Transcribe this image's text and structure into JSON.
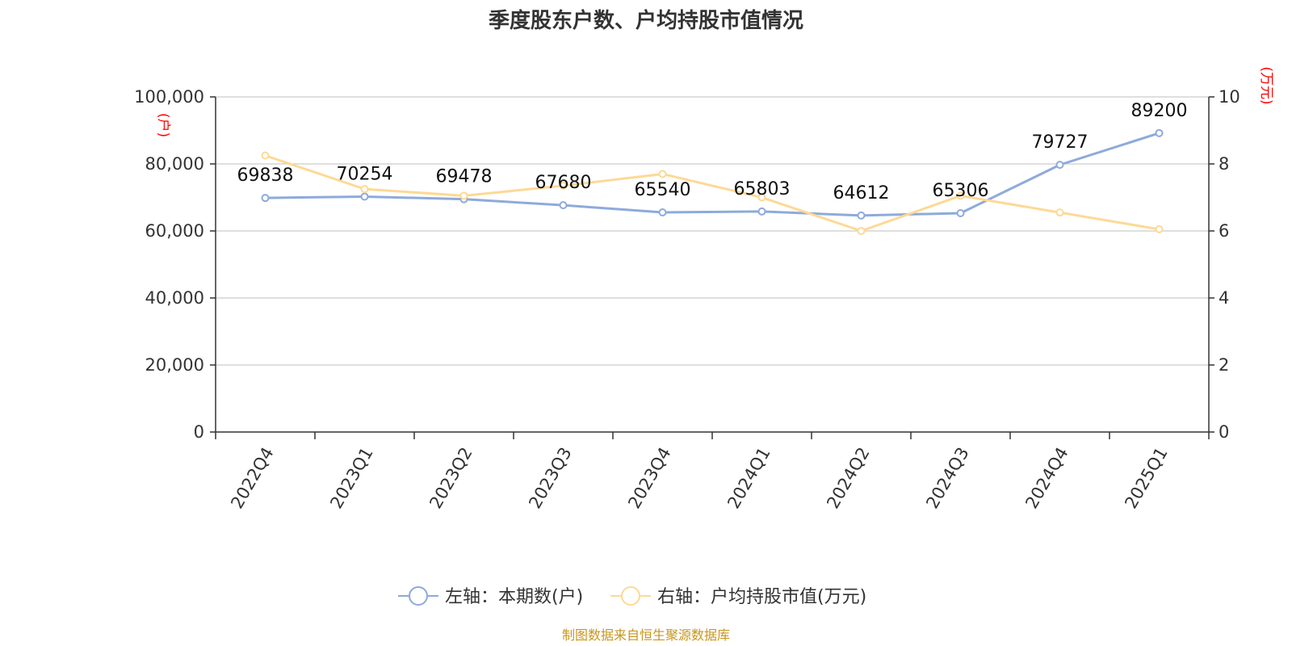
{
  "chart_data": {
    "type": "line",
    "title": "季度股东户数、户均持股市值情况",
    "categories": [
      "2022Q4",
      "2023Q1",
      "2023Q2",
      "2023Q3",
      "2023Q4",
      "2024Q1",
      "2024Q2",
      "2024Q3",
      "2024Q4",
      "2025Q1"
    ],
    "left_axis": {
      "unit": "(户)",
      "min": 0,
      "max": 100000,
      "ticks": [
        "0",
        "20,000",
        "40,000",
        "60,000",
        "80,000",
        "100,000"
      ],
      "tick_values": [
        0,
        20000,
        40000,
        60000,
        80000,
        100000
      ]
    },
    "right_axis": {
      "unit": "(万元)",
      "min": 0,
      "max": 10,
      "ticks": [
        "0",
        "2",
        "4",
        "6",
        "8",
        "10"
      ],
      "tick_values": [
        0,
        2,
        4,
        6,
        8,
        10
      ]
    },
    "series": [
      {
        "name": "左轴：本期数(户)",
        "axis": "left",
        "color": "#8eaadb",
        "values": [
          69838,
          70254,
          69478,
          67680,
          65540,
          65803,
          64612,
          65306,
          79727,
          89200
        ],
        "labels": [
          "69838",
          "70254",
          "69478",
          "67680",
          "65540",
          "65803",
          "64612",
          "65306",
          "79727",
          "89200"
        ]
      },
      {
        "name": "右轴：户均持股市值(万元)",
        "axis": "right",
        "color": "#fdd995",
        "values": [
          8.25,
          7.25,
          7.05,
          7.35,
          7.7,
          7.0,
          6.0,
          7.05,
          6.55,
          6.05
        ]
      }
    ],
    "grid": true,
    "legend_position": "bottom"
  },
  "source_text": "制图数据来自恒生聚源数据库"
}
